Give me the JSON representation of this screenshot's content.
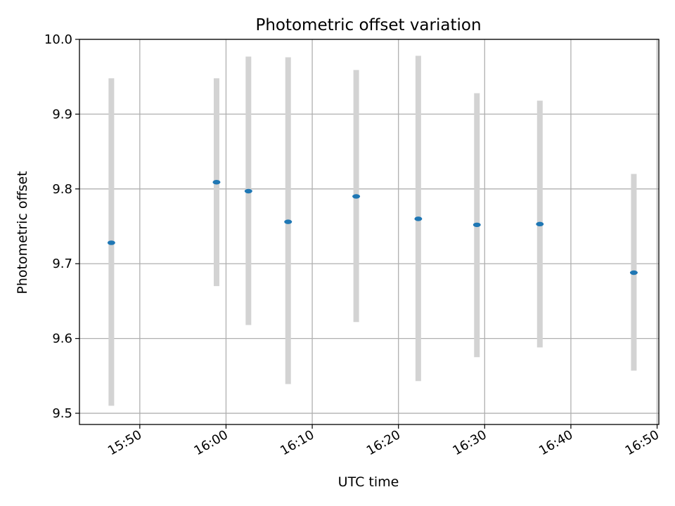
{
  "chart_data": {
    "type": "scatter",
    "title": "Photometric offset variation",
    "xlabel": "UTC time",
    "ylabel": "Photometric offset",
    "xlim": [
      "15:43",
      "16:50.2"
    ],
    "ylim": [
      9.485,
      10.0
    ],
    "xticks": [
      "15:50",
      "16:00",
      "16:10",
      "16:20",
      "16:30",
      "16:40",
      "16:50"
    ],
    "yticks": [
      "9.5",
      "9.6",
      "9.7",
      "9.8",
      "9.9",
      "10.0"
    ],
    "grid": true,
    "colors": {
      "point": "#1f77b4",
      "errorbar": "#d3d3d3",
      "grid": "#b0b0b0"
    },
    "points": [
      {
        "x": "15:46.7",
        "y": 9.728,
        "ylow": 9.51,
        "yhigh": 9.948
      },
      {
        "x": "15:58.9",
        "y": 9.809,
        "ylow": 9.67,
        "yhigh": 9.948
      },
      {
        "x": "16:02.6",
        "y": 9.797,
        "ylow": 9.618,
        "yhigh": 9.977
      },
      {
        "x": "16:07.2",
        "y": 9.756,
        "ylow": 9.539,
        "yhigh": 9.976
      },
      {
        "x": "16:15.1",
        "y": 9.79,
        "ylow": 9.622,
        "yhigh": 9.959
      },
      {
        "x": "16:22.3",
        "y": 9.76,
        "ylow": 9.543,
        "yhigh": 9.978
      },
      {
        "x": "16:29.1",
        "y": 9.752,
        "ylow": 9.575,
        "yhigh": 9.928
      },
      {
        "x": "16:36.4",
        "y": 9.753,
        "ylow": 9.588,
        "yhigh": 9.918
      },
      {
        "x": "16:47.3",
        "y": 9.688,
        "ylow": 9.557,
        "yhigh": 9.82
      }
    ]
  }
}
